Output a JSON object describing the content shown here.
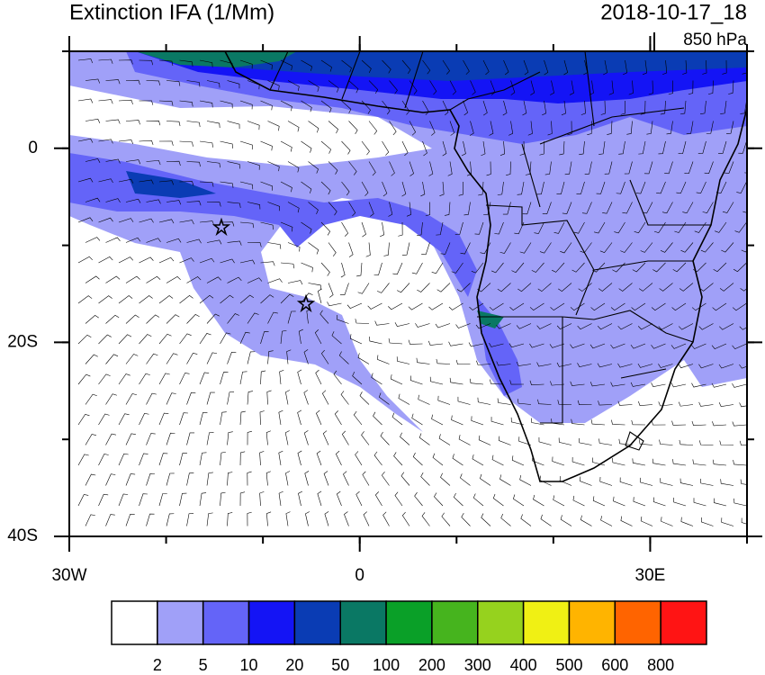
{
  "header": {
    "title": "Extinction IFA (1/Mm)",
    "valid_time": "2018-10-17_18",
    "level": "850 hPa"
  },
  "map": {
    "lon_range": [
      -30,
      40
    ],
    "lat_range": [
      -40,
      10
    ],
    "lon_ticks": [
      {
        "value": -30,
        "label": "30W"
      },
      0,
      {
        "value": 30,
        "label": "30E"
      }
    ],
    "lat_ticks": [
      0,
      {
        "value": -20,
        "label": "20S"
      },
      {
        "value": -40,
        "label": "40S"
      }
    ],
    "minor_tick_step": 10
  },
  "colorbar": {
    "levels": [
      2,
      5,
      10,
      20,
      50,
      100,
      200,
      300,
      400,
      500,
      600,
      800
    ],
    "colors": [
      "#ffffff",
      "#a0a0f8",
      "#6464f8",
      "#1414f5",
      "#0a3cb4",
      "#0a7864",
      "#0aa028",
      "#46b41e",
      "#96d21e",
      "#f0f014",
      "#ffb400",
      "#ff6400",
      "#ff1414"
    ]
  }
}
